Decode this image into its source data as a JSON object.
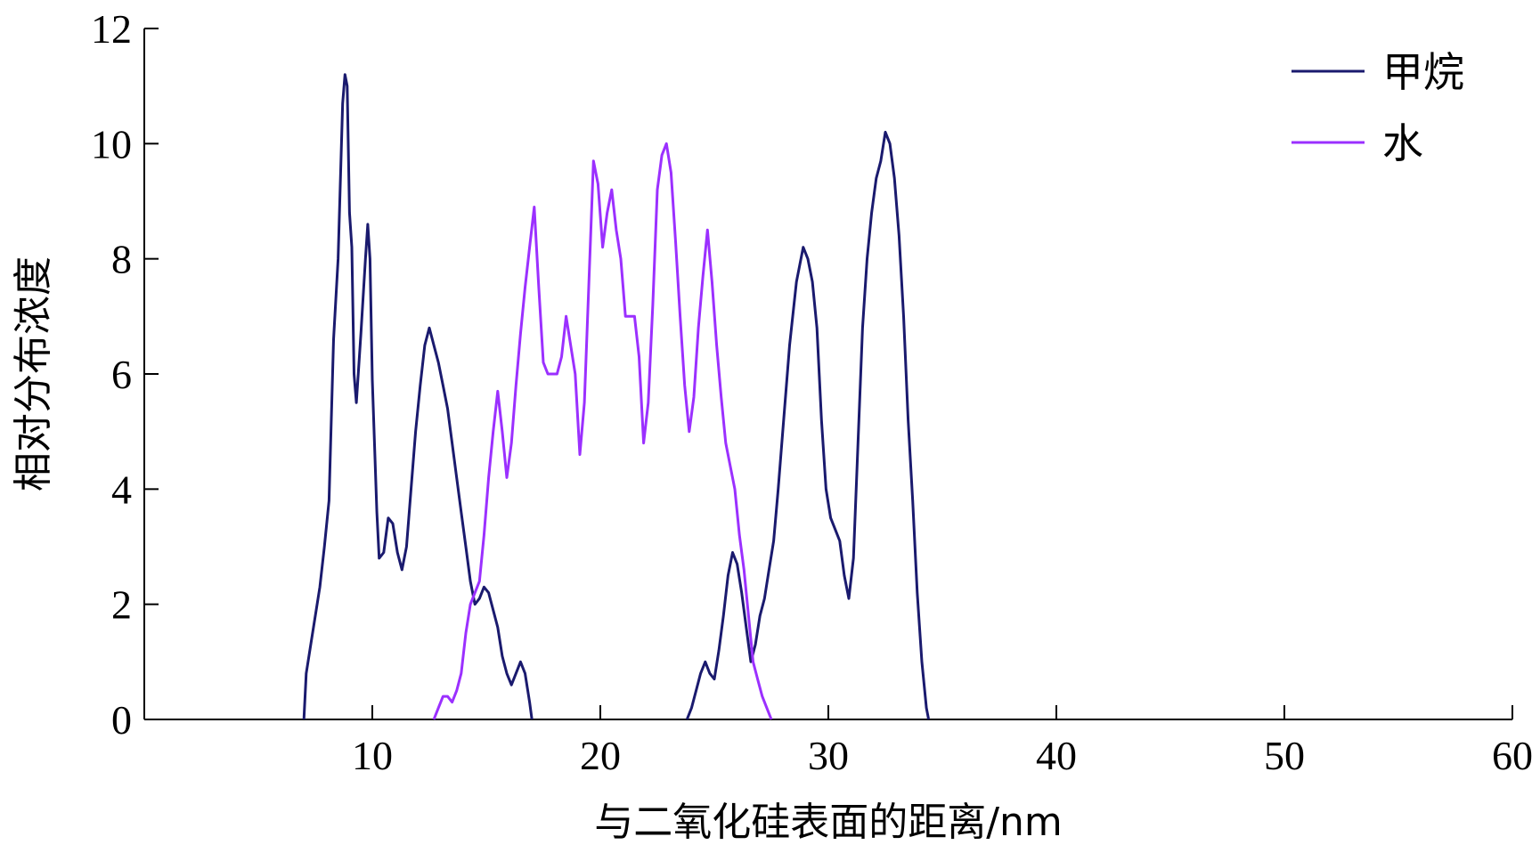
{
  "chart_data": {
    "type": "line",
    "xlabel": "与二氧化硅表面的距离/nm",
    "ylabel": "相对分布浓度",
    "xlim": [
      0,
      60
    ],
    "ylim": [
      0,
      12
    ],
    "x_ticks": [
      10,
      20,
      30,
      40,
      50,
      60
    ],
    "y_ticks": [
      0,
      2,
      4,
      6,
      8,
      10,
      12
    ],
    "legend_position": "top-right",
    "grid": false,
    "series": [
      {
        "name": "甲烷",
        "color": "#1a1a6e",
        "points": [
          [
            7.0,
            0
          ],
          [
            7.1,
            0.8
          ],
          [
            7.3,
            1.3
          ],
          [
            7.5,
            1.8
          ],
          [
            7.7,
            2.3
          ],
          [
            7.9,
            3.0
          ],
          [
            8.1,
            3.8
          ],
          [
            8.3,
            6.6
          ],
          [
            8.5,
            8.0
          ],
          [
            8.7,
            10.7
          ],
          [
            8.8,
            11.2
          ],
          [
            8.9,
            11.0
          ],
          [
            9.0,
            8.8
          ],
          [
            9.1,
            8.2
          ],
          [
            9.2,
            6.0
          ],
          [
            9.3,
            5.5
          ],
          [
            9.5,
            6.7
          ],
          [
            9.7,
            8.0
          ],
          [
            9.8,
            8.6
          ],
          [
            9.9,
            8.0
          ],
          [
            10.0,
            5.9
          ],
          [
            10.2,
            3.6
          ],
          [
            10.3,
            2.8
          ],
          [
            10.5,
            2.9
          ],
          [
            10.7,
            3.5
          ],
          [
            10.9,
            3.4
          ],
          [
            11.1,
            2.9
          ],
          [
            11.3,
            2.6
          ],
          [
            11.5,
            3.0
          ],
          [
            11.7,
            4.0
          ],
          [
            11.9,
            5.0
          ],
          [
            12.1,
            5.8
          ],
          [
            12.3,
            6.5
          ],
          [
            12.5,
            6.8
          ],
          [
            12.7,
            6.5
          ],
          [
            12.9,
            6.2
          ],
          [
            13.1,
            5.8
          ],
          [
            13.3,
            5.4
          ],
          [
            13.5,
            4.8
          ],
          [
            13.7,
            4.2
          ],
          [
            13.9,
            3.6
          ],
          [
            14.1,
            3.0
          ],
          [
            14.3,
            2.4
          ],
          [
            14.5,
            2.0
          ],
          [
            14.7,
            2.1
          ],
          [
            14.9,
            2.3
          ],
          [
            15.1,
            2.2
          ],
          [
            15.3,
            1.9
          ],
          [
            15.5,
            1.6
          ],
          [
            15.7,
            1.1
          ],
          [
            15.9,
            0.8
          ],
          [
            16.1,
            0.6
          ],
          [
            16.3,
            0.8
          ],
          [
            16.5,
            1.0
          ],
          [
            16.7,
            0.8
          ],
          [
            16.9,
            0.3
          ],
          [
            17.0,
            0
          ],
          [
            23.8,
            0
          ],
          [
            24.0,
            0.2
          ],
          [
            24.2,
            0.5
          ],
          [
            24.4,
            0.8
          ],
          [
            24.6,
            1.0
          ],
          [
            24.8,
            0.8
          ],
          [
            25.0,
            0.7
          ],
          [
            25.2,
            1.2
          ],
          [
            25.4,
            1.8
          ],
          [
            25.6,
            2.5
          ],
          [
            25.8,
            2.9
          ],
          [
            26.0,
            2.7
          ],
          [
            26.2,
            2.2
          ],
          [
            26.4,
            1.6
          ],
          [
            26.6,
            1.0
          ],
          [
            26.8,
            1.3
          ],
          [
            27.0,
            1.8
          ],
          [
            27.2,
            2.1
          ],
          [
            27.4,
            2.6
          ],
          [
            27.6,
            3.1
          ],
          [
            27.8,
            4.0
          ],
          [
            28.0,
            5.0
          ],
          [
            28.3,
            6.5
          ],
          [
            28.6,
            7.6
          ],
          [
            28.9,
            8.2
          ],
          [
            29.1,
            8.0
          ],
          [
            29.3,
            7.6
          ],
          [
            29.5,
            6.8
          ],
          [
            29.7,
            5.2
          ],
          [
            29.9,
            4.0
          ],
          [
            30.1,
            3.5
          ],
          [
            30.3,
            3.3
          ],
          [
            30.5,
            3.1
          ],
          [
            30.7,
            2.5
          ],
          [
            30.9,
            2.1
          ],
          [
            31.1,
            2.8
          ],
          [
            31.3,
            4.8
          ],
          [
            31.5,
            6.8
          ],
          [
            31.7,
            8.0
          ],
          [
            31.9,
            8.8
          ],
          [
            32.1,
            9.4
          ],
          [
            32.3,
            9.7
          ],
          [
            32.5,
            10.2
          ],
          [
            32.7,
            10.0
          ],
          [
            32.9,
            9.4
          ],
          [
            33.1,
            8.4
          ],
          [
            33.3,
            7.0
          ],
          [
            33.5,
            5.2
          ],
          [
            33.7,
            3.8
          ],
          [
            33.9,
            2.2
          ],
          [
            34.1,
            1.0
          ],
          [
            34.3,
            0.2
          ],
          [
            34.4,
            0
          ]
        ]
      },
      {
        "name": "水",
        "color": "#9b30ff",
        "points": [
          [
            12.7,
            0
          ],
          [
            12.9,
            0.2
          ],
          [
            13.1,
            0.4
          ],
          [
            13.3,
            0.4
          ],
          [
            13.5,
            0.3
          ],
          [
            13.7,
            0.5
          ],
          [
            13.9,
            0.8
          ],
          [
            14.1,
            1.5
          ],
          [
            14.3,
            2.0
          ],
          [
            14.5,
            2.2
          ],
          [
            14.7,
            2.4
          ],
          [
            14.9,
            3.2
          ],
          [
            15.1,
            4.2
          ],
          [
            15.3,
            5.0
          ],
          [
            15.5,
            5.7
          ],
          [
            15.7,
            5.0
          ],
          [
            15.9,
            4.2
          ],
          [
            16.1,
            4.8
          ],
          [
            16.3,
            5.8
          ],
          [
            16.5,
            6.7
          ],
          [
            16.7,
            7.5
          ],
          [
            16.9,
            8.2
          ],
          [
            17.1,
            8.9
          ],
          [
            17.3,
            7.5
          ],
          [
            17.5,
            6.2
          ],
          [
            17.7,
            6.0
          ],
          [
            17.9,
            6.0
          ],
          [
            18.1,
            6.0
          ],
          [
            18.3,
            6.3
          ],
          [
            18.5,
            7.0
          ],
          [
            18.7,
            6.5
          ],
          [
            18.9,
            6.0
          ],
          [
            19.1,
            4.6
          ],
          [
            19.3,
            5.5
          ],
          [
            19.5,
            7.6
          ],
          [
            19.7,
            9.7
          ],
          [
            19.9,
            9.3
          ],
          [
            20.1,
            8.2
          ],
          [
            20.3,
            8.8
          ],
          [
            20.5,
            9.2
          ],
          [
            20.7,
            8.5
          ],
          [
            20.9,
            8.0
          ],
          [
            21.1,
            7.0
          ],
          [
            21.3,
            7.0
          ],
          [
            21.5,
            7.0
          ],
          [
            21.7,
            6.3
          ],
          [
            21.9,
            4.8
          ],
          [
            22.1,
            5.5
          ],
          [
            22.3,
            7.2
          ],
          [
            22.5,
            9.2
          ],
          [
            22.7,
            9.8
          ],
          [
            22.9,
            10.0
          ],
          [
            23.1,
            9.5
          ],
          [
            23.3,
            8.3
          ],
          [
            23.5,
            7.0
          ],
          [
            23.7,
            5.8
          ],
          [
            23.9,
            5.0
          ],
          [
            24.1,
            5.6
          ],
          [
            24.3,
            6.8
          ],
          [
            24.5,
            7.7
          ],
          [
            24.7,
            8.5
          ],
          [
            24.9,
            7.6
          ],
          [
            25.1,
            6.5
          ],
          [
            25.3,
            5.6
          ],
          [
            25.5,
            4.8
          ],
          [
            25.7,
            4.4
          ],
          [
            25.9,
            4.0
          ],
          [
            26.1,
            3.2
          ],
          [
            26.3,
            2.6
          ],
          [
            26.5,
            1.8
          ],
          [
            26.7,
            1.0
          ],
          [
            26.9,
            0.7
          ],
          [
            27.1,
            0.4
          ],
          [
            27.3,
            0.2
          ],
          [
            27.5,
            0
          ]
        ]
      }
    ]
  }
}
